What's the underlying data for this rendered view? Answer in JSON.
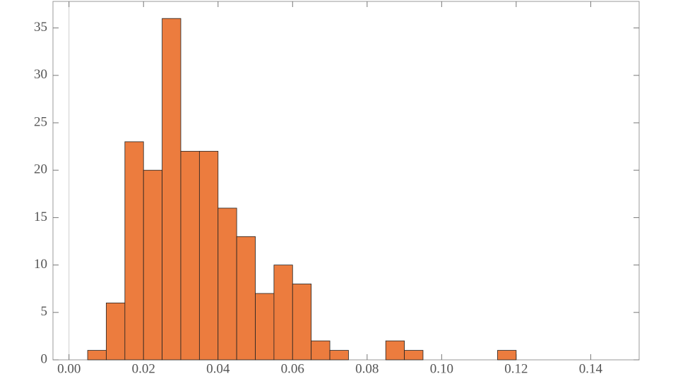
{
  "chart_data": {
    "type": "histogram",
    "bins": [
      0.005,
      0.01,
      0.015,
      0.02,
      0.025,
      0.03,
      0.035,
      0.04,
      0.045,
      0.05,
      0.055,
      0.06,
      0.065,
      0.07,
      0.075,
      0.08,
      0.085,
      0.09,
      0.095,
      0.1,
      0.105,
      0.11,
      0.115,
      0.12
    ],
    "counts": [
      1,
      6,
      23,
      20,
      36,
      22,
      22,
      16,
      13,
      7,
      10,
      8,
      2,
      1,
      0,
      0,
      2,
      1,
      0,
      0,
      0,
      0,
      1
    ],
    "color": "#ec7c3e",
    "xlim": [
      -0.0043,
      0.153
    ],
    "xticks": [
      {
        "value": 0,
        "label": "0.00"
      },
      {
        "value": 0.02,
        "label": "0.02"
      },
      {
        "value": 0.04,
        "label": "0.04"
      },
      {
        "value": 0.06,
        "label": "0.06"
      },
      {
        "value": 0.08,
        "label": "0.08"
      },
      {
        "value": 0.1,
        "label": "0.10"
      },
      {
        "value": 0.12,
        "label": "0.12"
      },
      {
        "value": 0.14,
        "label": "0.14"
      }
    ],
    "ylim": [
      0,
      37.8
    ],
    "yticks": [
      0,
      5,
      10,
      15,
      20,
      25,
      30,
      35
    ]
  }
}
